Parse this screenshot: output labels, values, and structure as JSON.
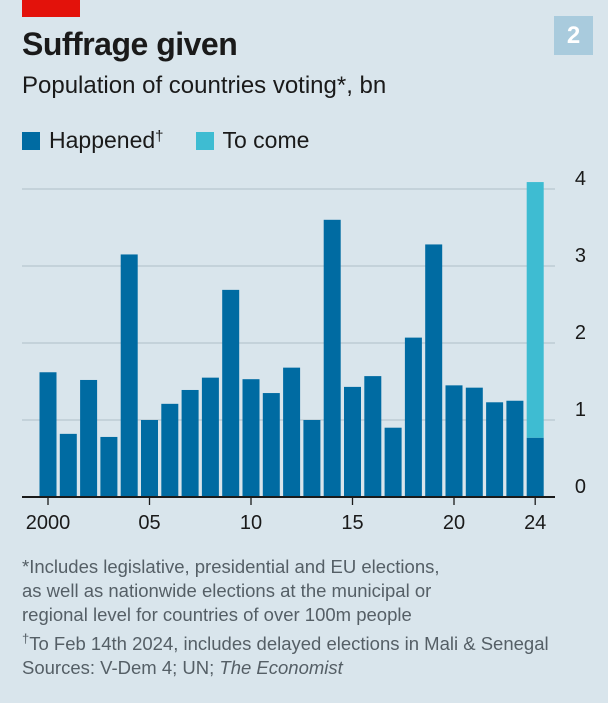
{
  "header": {
    "title": "Suffrage given",
    "subtitle": "Population of countries voting*, bn",
    "chart_number": "2"
  },
  "legend": {
    "happened_label": "Happened",
    "happened_mark": "†",
    "to_come_label": "To come"
  },
  "footnotes": {
    "line1": "*Includes legislative, presidential and EU elections,",
    "line2": "as well as nationwide elections at the municipal or",
    "line3": "regional level for countries of over 100m people",
    "line4_mark": "†",
    "line4": "To Feb 14th 2024, includes delayed elections in Mali & Senegal",
    "sources_prefix": "Sources: V-Dem 4; UN; ",
    "sources_italic": "The Economist"
  },
  "colors": {
    "happened": "#006ba2",
    "to_come": "#3ebcd2",
    "background": "#d9e5ec",
    "gridline": "#b7c6cf",
    "accent_red": "#e3120b"
  },
  "chart_data": {
    "type": "bar",
    "stacked": true,
    "categories": [
      2000,
      2001,
      2002,
      2003,
      2004,
      2005,
      2006,
      2007,
      2008,
      2009,
      2010,
      2011,
      2012,
      2013,
      2014,
      2015,
      2016,
      2017,
      2018,
      2019,
      2020,
      2021,
      2022,
      2023,
      2024
    ],
    "x_tick_labels": [
      {
        "year": 2000,
        "label": "2000"
      },
      {
        "year": 2005,
        "label": "05"
      },
      {
        "year": 2010,
        "label": "10"
      },
      {
        "year": 2015,
        "label": "15"
      },
      {
        "year": 2020,
        "label": "20"
      },
      {
        "year": 2024,
        "label": "24"
      }
    ],
    "series": [
      {
        "name": "Happened",
        "values": [
          1.62,
          0.82,
          1.52,
          0.78,
          3.15,
          1.0,
          1.21,
          1.39,
          1.55,
          2.69,
          1.53,
          1.35,
          1.68,
          1.0,
          3.6,
          1.43,
          1.57,
          0.9,
          2.07,
          3.28,
          1.45,
          1.42,
          1.23,
          1.25,
          0.77
        ]
      },
      {
        "name": "To come",
        "values": [
          0,
          0,
          0,
          0,
          0,
          0,
          0,
          0,
          0,
          0,
          0,
          0,
          0,
          0,
          0,
          0,
          0,
          0,
          0,
          0,
          0,
          0,
          0,
          0,
          3.32
        ]
      }
    ],
    "y_ticks": [
      0,
      1,
      2,
      3,
      4
    ],
    "ylim": [
      0,
      4.1
    ],
    "y_axis_side": "right",
    "grid": true
  }
}
